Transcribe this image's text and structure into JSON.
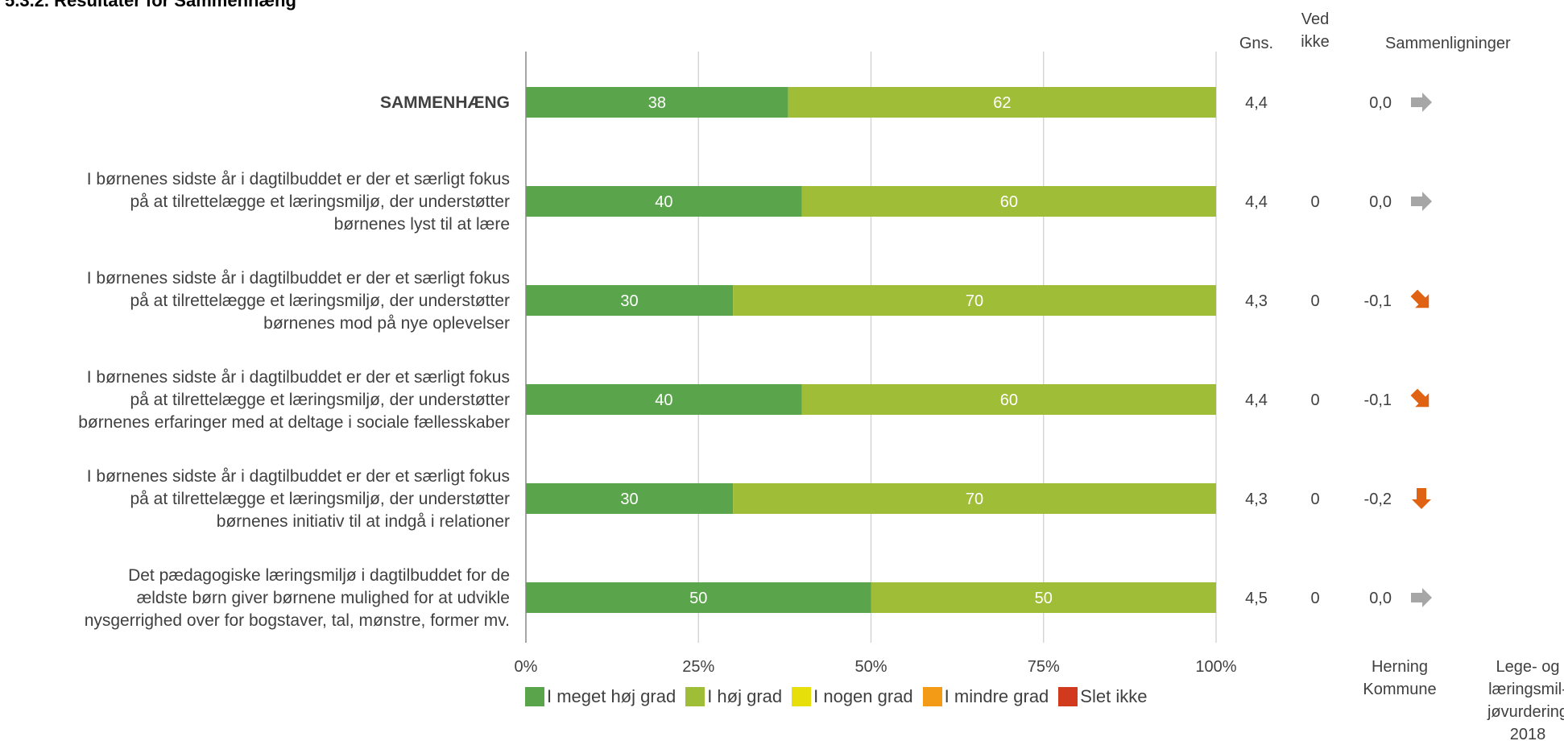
{
  "heading": "5.3.2. Resultater for Sammenhæng",
  "columns": {
    "gns": "Gns.",
    "ved_ikke": [
      "Ved",
      "ikke"
    ],
    "sammenligninger": "Sammenligninger",
    "herning": [
      "Herning",
      "Kommune"
    ],
    "vurdering": [
      "Lege- og",
      "læringsmil-",
      "jøvurdering",
      "2018"
    ]
  },
  "colors": {
    "meget_hoej": "#5aa54c",
    "hoej": "#a0bd37",
    "nogen": "#e6df0a",
    "mindre": "#f39a17",
    "slet_ikke": "#d13a1d",
    "arrow_neutral": "#a6a6a6",
    "arrow_down": "#e06213"
  },
  "chart_data": {
    "type": "bar",
    "orientation": "horizontal",
    "stacked": true,
    "xlim": [
      0,
      100
    ],
    "x_ticks": [
      "0%",
      "25%",
      "50%",
      "75%",
      "100%"
    ],
    "grid": true,
    "legend_position": "bottom",
    "categories": [
      [
        "SAMMENHÆNG"
      ],
      [
        "I børnenes sidste år i dagtilbuddet er der et særligt fokus",
        "på at tilrettelægge et læringsmiljø, der understøtter",
        "børnenes lyst til at lære"
      ],
      [
        "I børnenes sidste år i dagtilbuddet er der et særligt fokus",
        "på at tilrettelægge et læringsmiljø, der understøtter",
        "børnenes mod på nye oplevelser"
      ],
      [
        "I børnenes sidste år i dagtilbuddet er der et særligt fokus",
        "på at tilrettelægge et læringsmiljø, der understøtter",
        "børnenes erfaringer med at deltage i sociale fællesskaber"
      ],
      [
        "I børnenes sidste år i dagtilbuddet er der et særligt fokus",
        "på at tilrettelægge et læringsmiljø, der understøtter",
        "børnenes initiativ til at indgå i relationer"
      ],
      [
        "Det pædagogiske læringsmiljø i dagtilbuddet for de",
        "ældste børn giver børnene mulighed for at udvikle",
        "nysgerrighed over for bogstaver, tal, mønstre, former mv."
      ]
    ],
    "category_bold": [
      true,
      false,
      false,
      false,
      false,
      false
    ],
    "series": [
      {
        "name": "I meget høj grad",
        "values": [
          38,
          40,
          30,
          40,
          30,
          50
        ]
      },
      {
        "name": "I høj grad",
        "values": [
          62,
          60,
          70,
          60,
          70,
          50
        ]
      },
      {
        "name": "I nogen grad",
        "values": [
          0,
          0,
          0,
          0,
          0,
          0
        ]
      },
      {
        "name": "I mindre grad",
        "values": [
          0,
          0,
          0,
          0,
          0,
          0
        ]
      },
      {
        "name": "Slet ikke",
        "values": [
          0,
          0,
          0,
          0,
          0,
          0
        ]
      }
    ],
    "gns": [
      "4,4",
      "4,4",
      "4,3",
      "4,4",
      "4,3",
      "4,5"
    ],
    "ved_ikke": [
      "",
      "0",
      "0",
      "0",
      "0",
      "0"
    ],
    "comparison": [
      "0,0",
      "0,0",
      "-0,1",
      "-0,1",
      "-0,2",
      "0,0"
    ],
    "comparison_arrow": [
      "right",
      "right",
      "down-right",
      "down-right",
      "down",
      "right"
    ]
  }
}
